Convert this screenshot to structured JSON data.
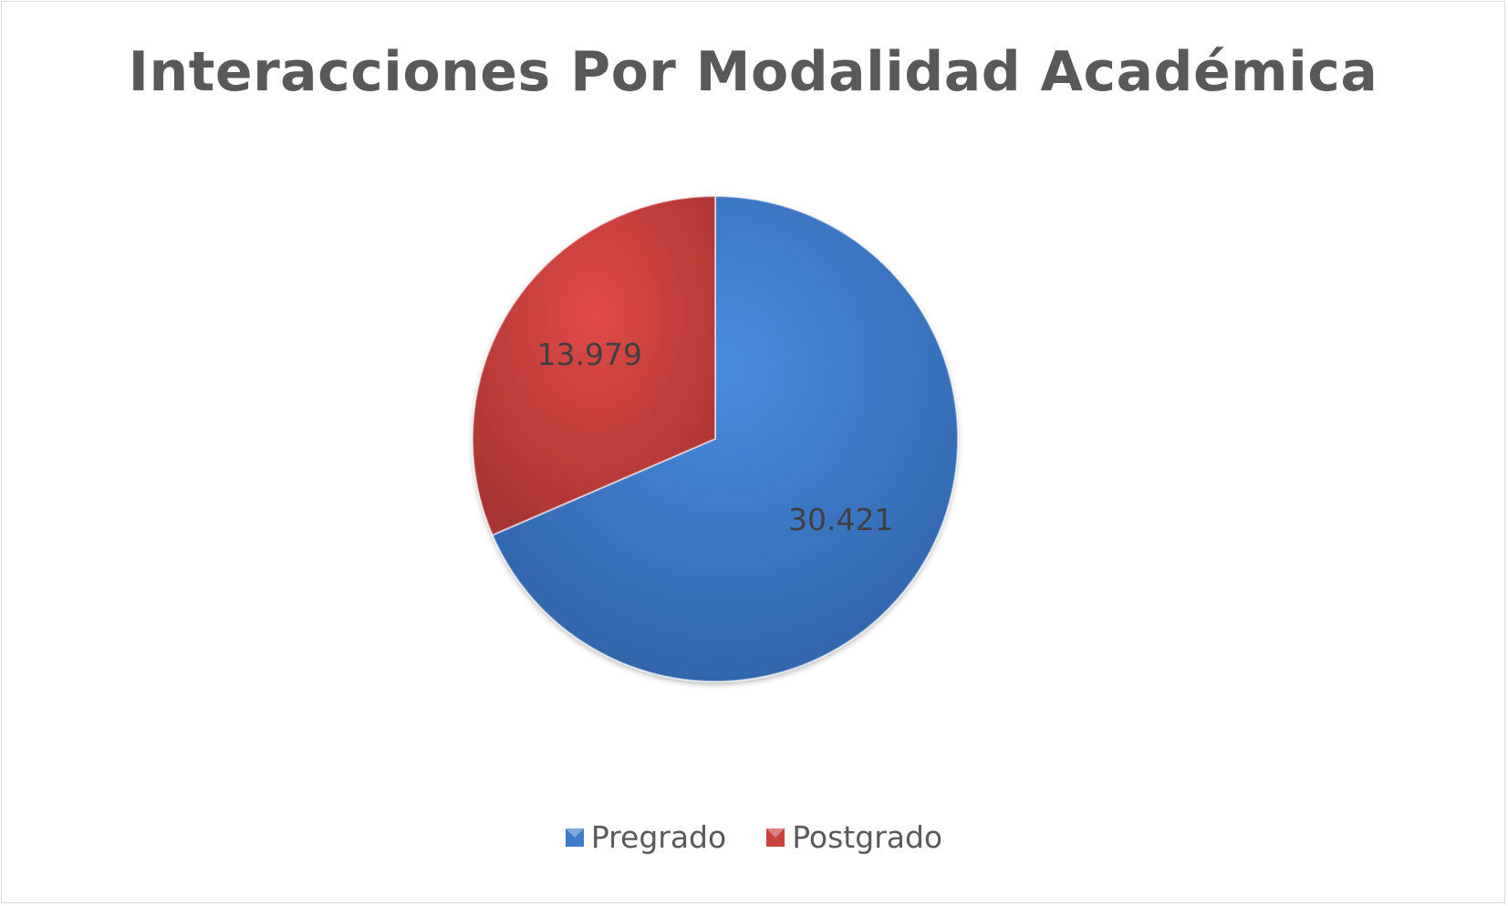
{
  "chart_data": {
    "type": "pie",
    "title": "Interacciones Por Modalidad Académica",
    "categories": [
      "Pregrado",
      "Postgrado"
    ],
    "values": [
      30421,
      13979
    ],
    "data_labels": [
      "30.421",
      "13.979"
    ],
    "colors": [
      "#3d7cc9",
      "#c9403d"
    ],
    "start_angle_deg": 0,
    "direction": "clockwise",
    "legend_position": "bottom"
  }
}
